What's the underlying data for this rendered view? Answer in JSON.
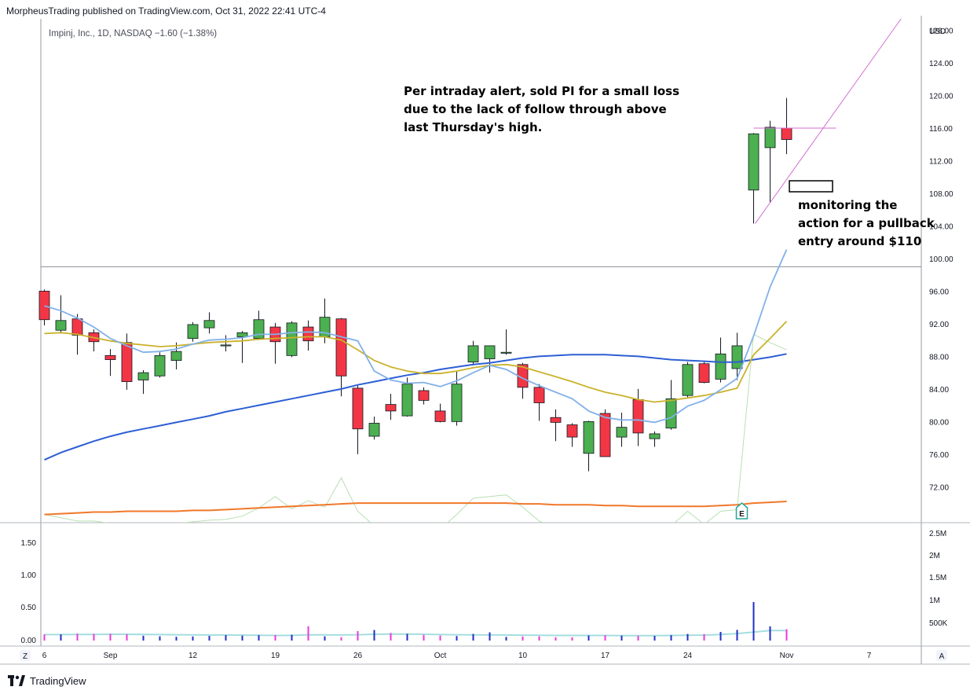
{
  "header": {
    "publish_line": "MorpheusTrading published on TradingView.com, Oct 31, 2022 22:41 UTC-4"
  },
  "legend": {
    "text": "Impinj, Inc., 1D, NASDAQ  −1.60 (−1.38%)"
  },
  "annotations": {
    "top": [
      "Per intraday alert, sold PI for a small loss",
      "due to the lack of follow through above",
      "last Thursday's high."
    ],
    "right": [
      "monitoring the",
      "action for a pullback",
      "entry around $110"
    ]
  },
  "footer": {
    "brand": "TradingView",
    "left_button": "Z",
    "right_button": "A"
  },
  "colors": {
    "up": "#4caf50",
    "down": "#f23645",
    "sma_fast": "#82b1e8",
    "sma_mid": "#c9b22a",
    "sma_slow": "#2d5fd4",
    "sma_long": "#f0782a",
    "volume_up": "#1f2fc4",
    "volume_down": "#ea3ad8",
    "volume_ma": "#a6dde0",
    "trendline": "#d36fd0",
    "rs_line": "#b9e0b3"
  },
  "chart_data": {
    "type": "candlestick",
    "currency_label": "USD",
    "price_ticks": [
      "128.00",
      "124.00",
      "120.00",
      "116.00",
      "112.00",
      "108.00",
      "104.00",
      "100.00",
      "96.00",
      "92.00",
      "88.00",
      "84.00",
      "80.00",
      "76.00",
      "72.00"
    ],
    "price_range": [
      67.6,
      129.4
    ],
    "x_ticks": [
      {
        "label": "6",
        "i": 0
      },
      {
        "label": "Sep",
        "i": 4
      },
      {
        "label": "12",
        "i": 9
      },
      {
        "label": "19",
        "i": 14
      },
      {
        "label": "26",
        "i": 19
      },
      {
        "label": "Oct",
        "i": 24
      },
      {
        "label": "10",
        "i": 29
      },
      {
        "label": "17",
        "i": 34
      },
      {
        "label": "24",
        "i": 39
      },
      {
        "label": "Nov",
        "i": 45
      },
      {
        "label": "7",
        "i": 50
      }
    ],
    "horizontal_line": 99.0,
    "candles": [
      {
        "o": 96.0,
        "h": 96.2,
        "l": 91.8,
        "c": 92.5
      },
      {
        "o": 91.2,
        "h": 95.5,
        "l": 90.8,
        "c": 92.4
      },
      {
        "o": 92.6,
        "h": 93.2,
        "l": 88.2,
        "c": 90.6
      },
      {
        "o": 90.9,
        "h": 91.3,
        "l": 88.6,
        "c": 89.8
      },
      {
        "o": 88.1,
        "h": 88.9,
        "l": 85.6,
        "c": 87.6
      },
      {
        "o": 89.7,
        "h": 90.8,
        "l": 83.9,
        "c": 84.9
      },
      {
        "o": 85.1,
        "h": 86.3,
        "l": 83.4,
        "c": 86.0
      },
      {
        "o": 85.6,
        "h": 88.5,
        "l": 85.4,
        "c": 88.1
      },
      {
        "o": 87.5,
        "h": 89.7,
        "l": 86.4,
        "c": 88.6
      },
      {
        "o": 90.2,
        "h": 92.2,
        "l": 89.8,
        "c": 91.9
      },
      {
        "o": 91.5,
        "h": 93.4,
        "l": 90.8,
        "c": 92.4
      },
      {
        "o": 89.4,
        "h": 90.6,
        "l": 88.6,
        "c": 89.4
      },
      {
        "o": 90.4,
        "h": 91.1,
        "l": 87.2,
        "c": 90.9
      },
      {
        "o": 90.2,
        "h": 93.6,
        "l": 90.0,
        "c": 92.5
      },
      {
        "o": 91.6,
        "h": 92.1,
        "l": 87.1,
        "c": 89.8
      },
      {
        "o": 88.1,
        "h": 92.3,
        "l": 87.9,
        "c": 92.1
      },
      {
        "o": 91.6,
        "h": 92.4,
        "l": 88.7,
        "c": 89.9
      },
      {
        "o": 90.4,
        "h": 95.1,
        "l": 89.6,
        "c": 92.8
      },
      {
        "o": 92.6,
        "h": 92.7,
        "l": 83.1,
        "c": 85.6
      },
      {
        "o": 84.1,
        "h": 84.4,
        "l": 76.0,
        "c": 79.1
      },
      {
        "o": 78.2,
        "h": 80.6,
        "l": 77.8,
        "c": 79.8
      },
      {
        "o": 82.1,
        "h": 83.4,
        "l": 80.2,
        "c": 81.3
      },
      {
        "o": 80.7,
        "h": 85.4,
        "l": 80.6,
        "c": 84.6
      },
      {
        "o": 83.8,
        "h": 84.2,
        "l": 82.1,
        "c": 82.6
      },
      {
        "o": 81.3,
        "h": 82.2,
        "l": 79.9,
        "c": 80.0
      },
      {
        "o": 80.0,
        "h": 86.2,
        "l": 79.5,
        "c": 84.6
      },
      {
        "o": 87.3,
        "h": 89.9,
        "l": 86.9,
        "c": 89.3
      },
      {
        "o": 87.7,
        "h": 89.3,
        "l": 86.0,
        "c": 89.3
      },
      {
        "o": 88.5,
        "h": 91.3,
        "l": 88.2,
        "c": 88.5
      },
      {
        "o": 87.0,
        "h": 87.2,
        "l": 82.8,
        "c": 84.2
      },
      {
        "o": 84.2,
        "h": 84.6,
        "l": 80.1,
        "c": 82.3
      },
      {
        "o": 80.5,
        "h": 81.5,
        "l": 77.6,
        "c": 79.9
      },
      {
        "o": 79.6,
        "h": 79.8,
        "l": 76.9,
        "c": 78.1
      },
      {
        "o": 76.1,
        "h": 80.1,
        "l": 73.9,
        "c": 80.0
      },
      {
        "o": 81.0,
        "h": 81.5,
        "l": 75.7,
        "c": 75.7
      },
      {
        "o": 78.1,
        "h": 81.1,
        "l": 76.9,
        "c": 79.3
      },
      {
        "o": 82.7,
        "h": 84.0,
        "l": 77.0,
        "c": 78.6
      },
      {
        "o": 77.9,
        "h": 78.8,
        "l": 76.9,
        "c": 78.5
      },
      {
        "o": 79.2,
        "h": 85.1,
        "l": 79.0,
        "c": 82.8
      },
      {
        "o": 83.2,
        "h": 87.3,
        "l": 82.9,
        "c": 87.0
      },
      {
        "o": 87.1,
        "h": 87.3,
        "l": 84.7,
        "c": 84.8
      },
      {
        "o": 85.2,
        "h": 90.3,
        "l": 84.8,
        "c": 88.3
      },
      {
        "o": 86.5,
        "h": 90.9,
        "l": 85.1,
        "c": 89.3
      },
      {
        "o": 108.4,
        "h": 115.4,
        "l": 104.3,
        "c": 115.3
      },
      {
        "o": 113.6,
        "h": 116.9,
        "l": 106.9,
        "c": 116.1
      },
      {
        "o": 116.0,
        "h": 119.7,
        "l": 112.8,
        "c": 114.6
      }
    ],
    "sma_fast": [
      94.2,
      93.6,
      92.7,
      91.6,
      90.2,
      89.3,
      88.5,
      88.6,
      88.9,
      89.5,
      90.0,
      90.1,
      90.3,
      90.7,
      90.7,
      90.9,
      91.0,
      90.9,
      90.4,
      89.9,
      86.2,
      85.1,
      84.7,
      84.8,
      84.3,
      85.0,
      86.0,
      86.9,
      86.4,
      85.3,
      84.4,
      83.6,
      82.8,
      81.3,
      80.5,
      80.2,
      80.2,
      79.9,
      80.5,
      81.9,
      82.6,
      83.9,
      85.3,
      90.5,
      96.5,
      101.1
    ],
    "sma_mid": [
      90.8,
      90.9,
      90.7,
      90.3,
      89.9,
      89.6,
      89.4,
      89.2,
      89.3,
      89.5,
      89.7,
      89.8,
      89.9,
      90.1,
      90.2,
      90.3,
      90.4,
      90.4,
      90.0,
      88.8,
      87.5,
      86.7,
      86.2,
      85.9,
      85.9,
      86.2,
      86.6,
      86.9,
      87.0,
      86.7,
      86.1,
      85.5,
      84.9,
      84.2,
      83.6,
      83.2,
      82.7,
      82.4,
      82.6,
      82.9,
      83.2,
      83.6,
      84.1,
      88.2,
      90.2,
      92.3
    ],
    "sma_slow": [
      75.3,
      76.2,
      76.9,
      77.6,
      78.2,
      78.7,
      79.1,
      79.5,
      79.9,
      80.3,
      80.7,
      81.2,
      81.6,
      82.0,
      82.4,
      82.8,
      83.2,
      83.6,
      84.0,
      84.5,
      84.9,
      85.3,
      85.7,
      86.0,
      86.4,
      86.7,
      87.0,
      87.2,
      87.5,
      87.8,
      88.0,
      88.1,
      88.2,
      88.2,
      88.2,
      88.1,
      88.0,
      87.8,
      87.6,
      87.5,
      87.4,
      87.3,
      87.3,
      87.6,
      87.9,
      88.3
    ],
    "sma_long": [
      68.6,
      68.7,
      68.8,
      68.9,
      68.9,
      69.0,
      69.0,
      69.0,
      69.0,
      69.1,
      69.1,
      69.2,
      69.3,
      69.4,
      69.5,
      69.6,
      69.7,
      69.8,
      69.9,
      70.0,
      70.0,
      70.0,
      70.0,
      70.0,
      70.0,
      70.0,
      70.0,
      70.0,
      70.0,
      69.9,
      69.9,
      69.8,
      69.8,
      69.8,
      69.7,
      69.7,
      69.6,
      69.6,
      69.6,
      69.6,
      69.6,
      69.7,
      69.8,
      70.0,
      70.1,
      70.2
    ],
    "trendline": {
      "start": {
        "i": 43.1,
        "p": 104.3
      },
      "end": {
        "i": 52.5,
        "p": 131.0
      }
    },
    "resistance_line": {
      "from_i": 43.0,
      "to_i": 48.0,
      "p": 116.0
    },
    "relative_strength": [
      68.6,
      68.2,
      67.8,
      67.8,
      67.5,
      67.3,
      67.0,
      67.3,
      67.5,
      67.7,
      67.9,
      68.0,
      68.4,
      69.4,
      70.8,
      69.3,
      70.3,
      69.5,
      73.1,
      69.0,
      67.2,
      67.3,
      66.8,
      66.4,
      66.8,
      68.6,
      70.6,
      70.8,
      71.0,
      69.5,
      67.8,
      66.9,
      66.4,
      66.3,
      66.5,
      66.8,
      67.2,
      67.2,
      67.2,
      69.0,
      67.4,
      69.0,
      69.2,
      90.7,
      89.7,
      88.8
    ],
    "earnings_marker": {
      "i": 42,
      "label": "E"
    },
    "volume": {
      "ticks_left": [
        "1.50",
        "1.00",
        "0.50",
        "0.00"
      ],
      "ticks_right": [
        "2.5M",
        "2M",
        "1.5M",
        "1M",
        "500K"
      ],
      "max": 2.65,
      "values": [
        0.42,
        0.42,
        0.47,
        0.46,
        0.46,
        0.43,
        0.33,
        0.29,
        0.26,
        0.28,
        0.32,
        0.37,
        0.34,
        0.37,
        0.38,
        0.4,
        0.98,
        0.29,
        0.23,
        0.65,
        0.72,
        0.51,
        0.46,
        0.39,
        0.34,
        0.31,
        0.45,
        0.56,
        0.25,
        0.28,
        0.29,
        0.22,
        0.22,
        0.35,
        0.36,
        0.34,
        0.33,
        0.32,
        0.37,
        0.45,
        0.44,
        0.59,
        0.73,
        2.63,
        0.97,
        0.77
      ],
      "ma": [
        0.41,
        0.41,
        0.42,
        0.42,
        0.43,
        0.43,
        0.42,
        0.41,
        0.4,
        0.39,
        0.38,
        0.38,
        0.37,
        0.36,
        0.35,
        0.35,
        0.4,
        0.39,
        0.38,
        0.4,
        0.43,
        0.44,
        0.44,
        0.43,
        0.41,
        0.4,
        0.39,
        0.38,
        0.38,
        0.37,
        0.36,
        0.35,
        0.35,
        0.35,
        0.35,
        0.34,
        0.34,
        0.34,
        0.35,
        0.36,
        0.37,
        0.42,
        0.48,
        0.58,
        0.69,
        0.68
      ]
    }
  }
}
